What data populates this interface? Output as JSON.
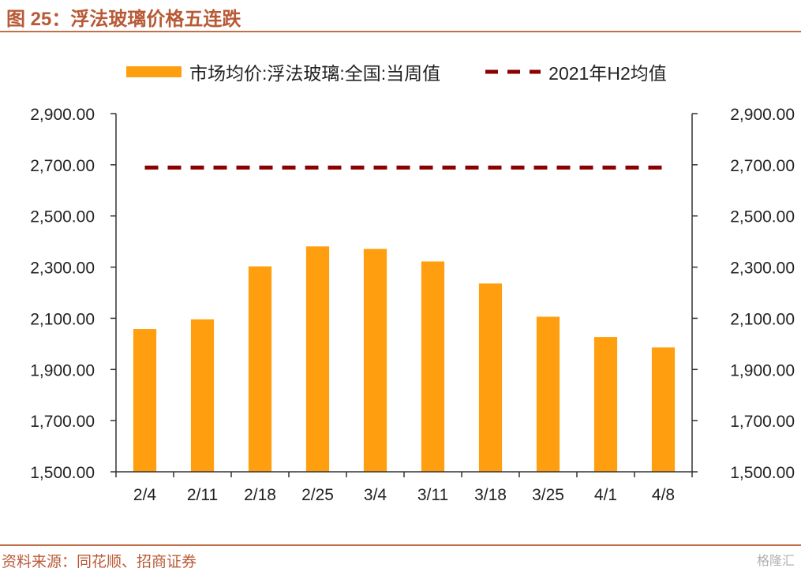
{
  "figure": {
    "number": "图 25：",
    "title": "浮法玻璃价格五连跌"
  },
  "source": "资料来源：同花顺、招商证券",
  "watermark": "格隆汇",
  "colors": {
    "bar": "#ff9e0e",
    "reference_line": "#8b0000",
    "accent": "#b85a36"
  },
  "chart_data": {
    "type": "bar",
    "categories": [
      "2/4",
      "2/11",
      "2/18",
      "2/25",
      "3/4",
      "3/11",
      "3/18",
      "3/25",
      "4/1",
      "4/8"
    ],
    "series": [
      {
        "name": "市场均价:浮法玻璃:全国:当周值",
        "type": "bar",
        "values": [
          2058,
          2096,
          2303,
          2381,
          2371,
          2322,
          2236,
          2106,
          2027,
          1986
        ]
      },
      {
        "name": "2021年H2均值",
        "type": "line",
        "style": "dashed",
        "values": [
          2689,
          2689,
          2689,
          2689,
          2689,
          2689,
          2689,
          2689,
          2689,
          2689
        ]
      }
    ],
    "ylim": [
      1500,
      2900
    ],
    "yticks": [
      "1,500.00",
      "1,700.00",
      "1,900.00",
      "2,100.00",
      "2,300.00",
      "2,500.00",
      "2,700.00",
      "2,900.00"
    ],
    "ytick_values": [
      1500,
      1700,
      1900,
      2100,
      2300,
      2500,
      2700,
      2900
    ],
    "secondary_axis": true,
    "grid": false,
    "legend_position": "top"
  }
}
